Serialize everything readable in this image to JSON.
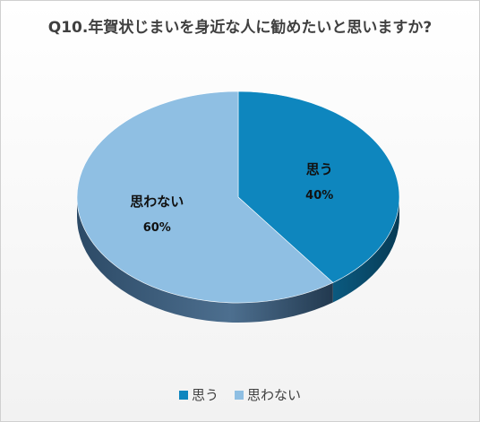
{
  "chart_data": {
    "type": "pie",
    "title": "Q10.年賀状じまいを身近な人に勧めたいと思いますか?",
    "categories": [
      "思う",
      "思わない"
    ],
    "values": [
      40,
      60
    ],
    "value_labels": [
      "40%",
      "60%"
    ],
    "colors": [
      "#0e86be",
      "#8fbfe3"
    ],
    "side_colors": [
      "#0a5678",
      "#3f5e7a"
    ],
    "legend_position": "bottom",
    "style": "3d"
  }
}
